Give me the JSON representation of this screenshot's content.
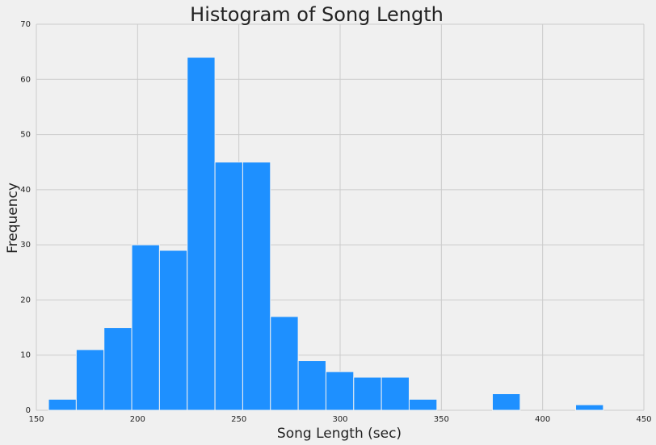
{
  "chart_data": {
    "type": "bar",
    "subtype": "histogram",
    "title": "Histogram of Song Length",
    "xlabel": "Song Length (sec)",
    "ylabel": "Frequency",
    "xlim": [
      150,
      450
    ],
    "ylim": [
      0,
      70
    ],
    "xticks": [
      150,
      200,
      250,
      300,
      350,
      400,
      450
    ],
    "yticks": [
      0,
      10,
      20,
      30,
      40,
      50,
      60,
      70
    ],
    "grid": true,
    "bin_edges": [
      156,
      169.7,
      183.4,
      197.1,
      210.8,
      224.5,
      238.2,
      251.9,
      265.6,
      279.3,
      293.0,
      306.7,
      320.4,
      334.1,
      347.8,
      361.5,
      375.2,
      388.9,
      402.6,
      416.3,
      430.0
    ],
    "counts": [
      2,
      11,
      15,
      30,
      29,
      64,
      45,
      45,
      17,
      9,
      7,
      6,
      6,
      2,
      0,
      0,
      3,
      0,
      0,
      1
    ],
    "colors": {
      "bar": "#1e90ff",
      "bar_edge": "#f0f0f0",
      "grid": "#cbcbcb",
      "background": "#f0f0f0"
    }
  }
}
